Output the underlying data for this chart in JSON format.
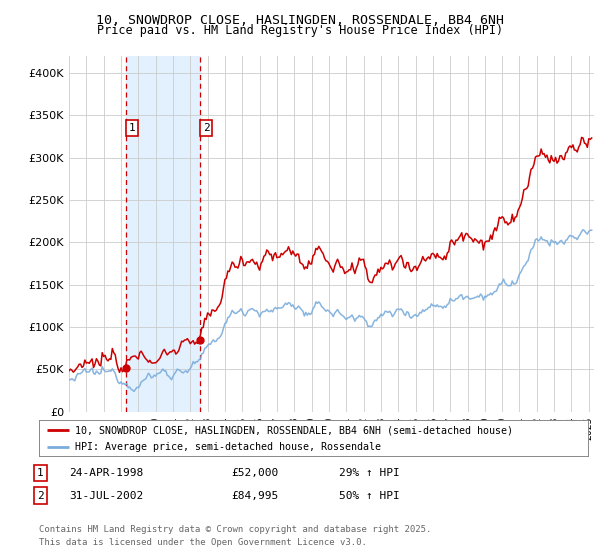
{
  "title_line1": "10, SNOWDROP CLOSE, HASLINGDEN, ROSSENDALE, BB4 6NH",
  "title_line2": "Price paid vs. HM Land Registry's House Price Index (HPI)",
  "legend_line1": "10, SNOWDROP CLOSE, HASLINGDEN, ROSSENDALE, BB4 6NH (semi-detached house)",
  "legend_line2": "HPI: Average price, semi-detached house, Rossendale",
  "transaction1_date": "24-APR-1998",
  "transaction1_price": "£52,000",
  "transaction1_hpi": "29% ↑ HPI",
  "transaction1_year": 1998.29,
  "transaction1_value": 52000,
  "transaction2_date": "31-JUL-2002",
  "transaction2_price": "£84,995",
  "transaction2_hpi": "50% ↑ HPI",
  "transaction2_year": 2002.58,
  "transaction2_value": 84995,
  "footer": "Contains HM Land Registry data © Crown copyright and database right 2025.\nThis data is licensed under the Open Government Licence v3.0.",
  "ylim": [
    0,
    420000
  ],
  "red_color": "#cc0000",
  "blue_color": "#7aaddc",
  "shade_color": "#ddeeff",
  "vline_color": "#cc0000",
  "grid_color": "#cccccc",
  "bg_color": "#ffffff"
}
